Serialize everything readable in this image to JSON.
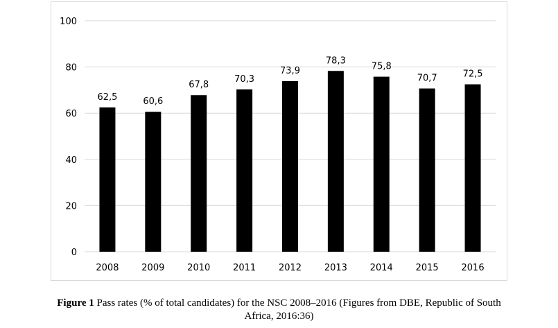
{
  "chart_data": {
    "type": "bar",
    "title": "",
    "xlabel": "",
    "ylabel": "",
    "categories": [
      "2008",
      "2009",
      "2010",
      "2011",
      "2012",
      "2013",
      "2014",
      "2015",
      "2016"
    ],
    "values": [
      62.5,
      60.6,
      67.8,
      70.3,
      73.9,
      78.3,
      75.8,
      70.7,
      72.5
    ],
    "value_labels": [
      "62,5",
      "60,6",
      "67,8",
      "70,3",
      "73,9",
      "78,3",
      "75,8",
      "70,7",
      "72,5"
    ],
    "ylim": [
      0,
      100
    ],
    "yticks": [
      "0",
      "20",
      "40",
      "60",
      "80",
      "100"
    ],
    "grid": true,
    "legend": "none",
    "bar_color": "#000000",
    "grid_color": "#d9d9d9"
  },
  "caption": {
    "label": "Figure 1",
    "text_line1": "Pass rates (% of total candidates) for the NSC 2008–2016 (Figures from DBE, Republic of South",
    "text_line2": "Africa, 2016:36)"
  }
}
